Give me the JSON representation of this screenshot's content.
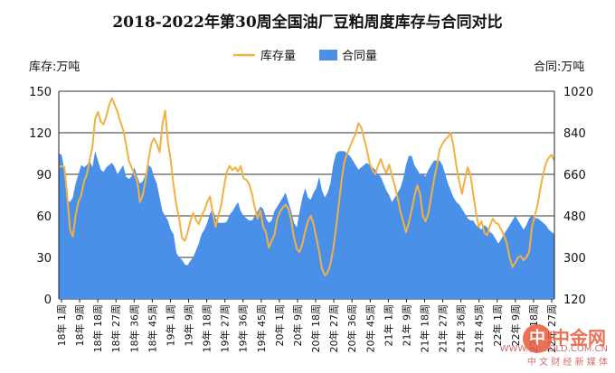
{
  "chart_data": {
    "type": "area",
    "title": "2018-2022年第30周全国油厂豆粕周度库存与合同对比",
    "ylabel_left": "库存:万吨",
    "ylabel_right": "合同:万吨",
    "legend_placement": "top-center",
    "ylim_left": [
      0,
      150
    ],
    "ylim_right": [
      120,
      1020
    ],
    "yticks_left": [
      "0",
      "30",
      "60",
      "90",
      "120",
      "150"
    ],
    "yticks_right": [
      "120",
      "300",
      "480",
      "660",
      "840",
      "1020"
    ],
    "x_tick_labels": [
      "18年 1周",
      "18年 9周",
      "18年 18周",
      "18年 27周",
      "18年 36周",
      "18年 45周",
      "19年 1周",
      "19年 9周",
      "19年 18周",
      "19年 27周",
      "19年 36周",
      "19年 45周",
      "20年 1周",
      "20年 9周",
      "20年 18周",
      "20年 27周",
      "20年 36周",
      "20年 45周",
      "21年 1周",
      "21年 9周",
      "21年 18周",
      "21年 27周",
      "21年 36周",
      "21年 45周",
      "22年 1周",
      "22年 9周",
      "22年 18周",
      "22年 27周"
    ],
    "grid": true,
    "series": [
      {
        "name": "库存量",
        "type": "line",
        "axis": "left",
        "color": "#f2b143",
        "values": [
          95,
          96,
          95,
          75,
          50,
          45,
          60,
          70,
          75,
          85,
          90,
          100,
          110,
          130,
          135,
          128,
          126,
          132,
          140,
          145,
          140,
          135,
          128,
          122,
          112,
          100,
          95,
          90,
          85,
          70,
          75,
          86,
          100,
          112,
          116,
          112,
          106,
          126,
          136,
          113,
          100,
          82,
          68,
          58,
          44,
          42,
          48,
          56,
          62,
          57,
          54,
          60,
          64,
          70,
          74,
          62,
          52,
          60,
          68,
          81,
          92,
          96,
          93,
          95,
          92,
          96,
          87,
          86,
          83,
          76,
          66,
          58,
          64,
          52,
          48,
          37,
          42,
          46,
          58,
          63,
          66,
          68,
          65,
          57,
          44,
          36,
          34,
          40,
          49,
          56,
          60,
          54,
          44,
          34,
          22,
          17,
          19,
          25,
          36,
          51,
          68,
          86,
          99,
          105,
          110,
          115,
          119,
          127,
          124,
          116,
          108,
          98,
          93,
          90,
          96,
          101,
          95,
          91,
          97,
          89,
          82,
          73,
          63,
          56,
          48,
          55,
          64,
          74,
          82,
          76,
          60,
          56,
          62,
          74,
          86,
          96,
          108,
          112,
          115,
          117,
          120,
          110,
          96,
          85,
          76,
          86,
          95,
          90,
          76,
          62,
          52,
          56,
          48,
          46,
          53,
          58,
          55,
          54,
          50,
          46,
          40,
          30,
          23,
          26,
          30,
          31,
          28,
          30,
          34,
          52,
          60,
          68,
          80,
          90,
          98,
          102,
          104,
          100
        ]
      },
      {
        "name": "合同量",
        "type": "area",
        "axis": "right",
        "color": "#4a8fe8",
        "values": [
          750,
          745,
          680,
          550,
          540,
          560,
          620,
          660,
          700,
          690,
          700,
          720,
          690,
          760,
          720,
          680,
          670,
          690,
          700,
          710,
          690,
          660,
          680,
          700,
          650,
          640,
          650,
          690,
          650,
          620,
          630,
          660,
          700,
          690,
          650,
          620,
          560,
          500,
          480,
          460,
          420,
          400,
          320,
          300,
          290,
          270,
          265,
          285,
          300,
          330,
          360,
          400,
          420,
          450,
          490,
          510,
          470,
          450,
          450,
          450,
          455,
          485,
          500,
          520,
          540,
          500,
          480,
          470,
          460,
          460,
          480,
          500,
          520,
          510,
          470,
          450,
          460,
          500,
          520,
          540,
          560,
          580,
          540,
          500,
          450,
          430,
          500,
          560,
          600,
          560,
          550,
          580,
          600,
          650,
          590,
          560,
          580,
          620,
          700,
          750,
          760,
          760,
          760,
          750,
          740,
          720,
          700,
          680,
          690,
          700,
          710,
          700,
          690,
          680,
          660,
          650,
          620,
          590,
          570,
          540,
          560,
          580,
          600,
          640,
          700,
          740,
          740,
          700,
          680,
          660,
          660,
          650,
          680,
          700,
          720,
          720,
          720,
          700,
          660,
          620,
          590,
          560,
          540,
          530,
          510,
          490,
          470,
          460,
          460,
          440,
          430,
          420,
          440,
          430,
          410,
          400,
          380,
          360,
          380,
          400,
          420,
          440,
          460,
          480,
          460,
          440,
          420,
          440,
          470,
          480,
          470,
          470,
          460,
          450,
          440,
          420,
          410,
          400
        ]
      }
    ]
  },
  "watermark": {
    "logo_char": "中",
    "name": "中金网",
    "url": "WWW.CNGOLD.COM.CN",
    "tagline": "中 文 财 经 新 媒 体"
  }
}
